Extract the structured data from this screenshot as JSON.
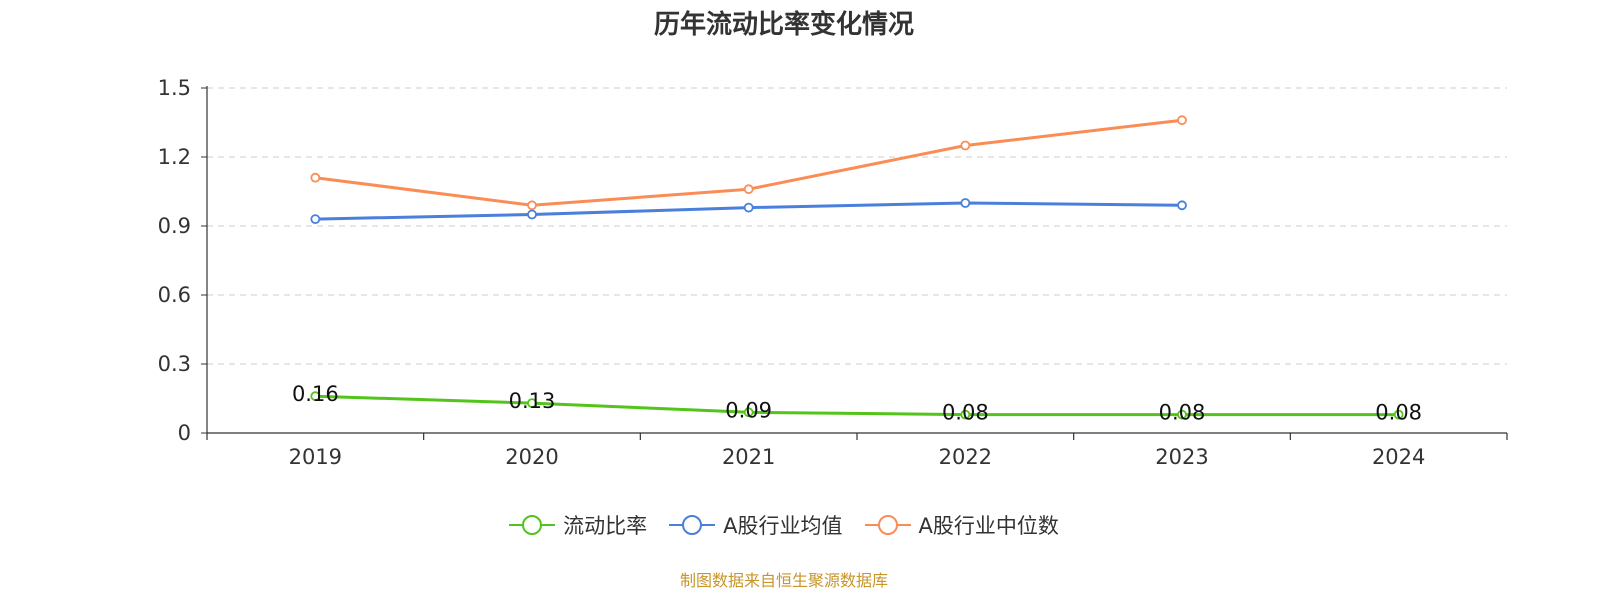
{
  "chart_data": {
    "type": "line",
    "title": "历年流动比率变化情况",
    "categories": [
      "2019",
      "2020",
      "2021",
      "2022",
      "2023",
      "2024"
    ],
    "ylim": [
      0,
      1.5
    ],
    "yticks": [
      "0",
      "0.3",
      "0.6",
      "0.9",
      "1.2",
      "1.5"
    ],
    "grid": true,
    "legend_position": "bottom",
    "series": [
      {
        "name": "流动比率",
        "color": "#52c41a",
        "values": [
          0.16,
          0.13,
          0.09,
          0.08,
          0.08,
          0.08
        ],
        "labels": [
          "0.16",
          "0.13",
          "0.09",
          "0.08",
          "0.08",
          "0.08"
        ]
      },
      {
        "name": "A股行业均值",
        "color": "#4a7fdb",
        "values": [
          0.93,
          0.95,
          0.98,
          1.0,
          0.99,
          null
        ]
      },
      {
        "name": "A股行业中位数",
        "color": "#fa8c55",
        "values": [
          1.11,
          0.99,
          1.06,
          1.25,
          1.36,
          null
        ]
      }
    ]
  },
  "source": "制图数据来自恒生聚源数据库"
}
